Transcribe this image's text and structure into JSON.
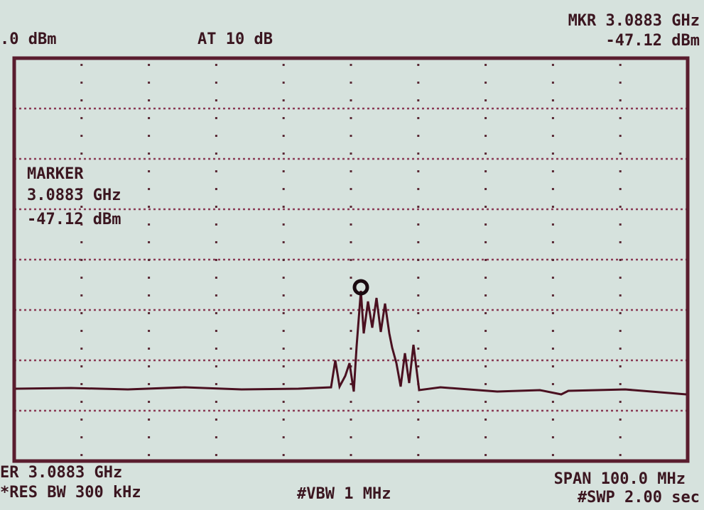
{
  "header": {
    "reference": ".0 dBm",
    "attenuation": "AT 10 dB",
    "marker_freq": "MKR 3.0883 GHz",
    "marker_level": "-47.12 dBm"
  },
  "marker_box": {
    "title": "MARKER",
    "freq": "3.0883 GHz",
    "level": "-47.12 dBm"
  },
  "footer": {
    "center": "ER 3.0883 GHz",
    "rbw": "*RES BW 300 kHz",
    "vbw": "#VBW 1 MHz",
    "span": "SPAN 100.0 MHz",
    "sweep": "#SWP 2.00 sec"
  }
}
